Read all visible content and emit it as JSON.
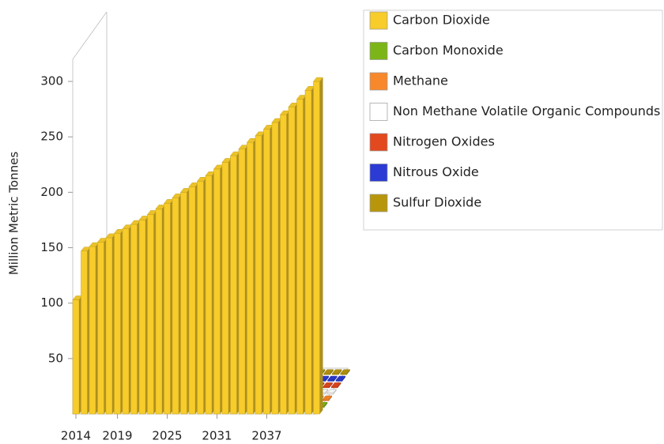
{
  "chart_data": {
    "type": "bar3d",
    "y_label": "Million Metric Tonnes",
    "categories": [
      "2014",
      null,
      null,
      null,
      null,
      "2019",
      null,
      null,
      null,
      null,
      null,
      "2025",
      null,
      null,
      null,
      null,
      null,
      "2031",
      null,
      null,
      null,
      null,
      null,
      "2037",
      null,
      null,
      null,
      null,
      null,
      null
    ],
    "series": [
      {
        "name": "Carbon Dioxide",
        "color": "#f7cc2b",
        "values": [
          103,
          147,
          151,
          155,
          159,
          163,
          167,
          171,
          175,
          180,
          185,
          190,
          195,
          200,
          205,
          210,
          215,
          221,
          227,
          233,
          239,
          245,
          251,
          257,
          263,
          270,
          277,
          284,
          292,
          300
        ]
      },
      {
        "name": "Carbon Monoxide",
        "color": "#7cb518",
        "values": [
          1,
          1,
          1,
          1,
          1,
          1,
          1,
          1,
          1,
          1,
          1,
          1,
          1,
          1,
          1,
          1,
          1,
          1,
          1,
          1,
          1,
          1,
          1,
          1,
          1,
          1,
          1,
          1,
          1,
          1
        ]
      },
      {
        "name": "Methane",
        "color": "#f7882c",
        "values": [
          1,
          1,
          1,
          1,
          1,
          1,
          1,
          1,
          1,
          1,
          1,
          1,
          1,
          1,
          1,
          1,
          1,
          1,
          1,
          1,
          1,
          1,
          1,
          1,
          1,
          1,
          1,
          1,
          1,
          1
        ]
      },
      {
        "name": "Non Methane Volatile Organic Compounds",
        "color": "#ffffff",
        "values": [
          1,
          1,
          1,
          1,
          1,
          1,
          1,
          1,
          1,
          1,
          1,
          1,
          1,
          1,
          1,
          1,
          1,
          1,
          1,
          1,
          1,
          1,
          1,
          1,
          1,
          1,
          1,
          1,
          1,
          1
        ]
      },
      {
        "name": "Nitrogen Oxides",
        "color": "#e2491f",
        "values": [
          1,
          1,
          1,
          1,
          1,
          1,
          1,
          1,
          1,
          1,
          1,
          1,
          1,
          1,
          1,
          1,
          1,
          1,
          1,
          1,
          1,
          1,
          1,
          1,
          1,
          1,
          1,
          1,
          1,
          1
        ]
      },
      {
        "name": "Nitrous Oxide",
        "color": "#2b3bd4",
        "values": [
          1,
          1,
          1,
          1,
          1,
          1,
          1,
          1,
          1,
          1,
          1,
          1,
          1,
          1,
          1,
          1,
          1,
          1,
          1,
          1,
          1,
          1,
          1,
          1,
          1,
          1,
          1,
          1,
          1,
          1
        ]
      },
      {
        "name": "Sulfur Dioxide",
        "color": "#b8960c",
        "values": [
          1,
          1,
          1,
          1,
          1,
          1,
          1,
          1,
          1,
          1,
          1,
          1,
          1,
          1,
          1,
          1,
          1,
          1,
          1,
          1,
          1,
          1,
          1,
          1,
          1,
          1,
          1,
          1,
          1,
          1
        ]
      }
    ],
    "ylim": [
      0,
      320
    ],
    "yticks": [
      50,
      100,
      150,
      200,
      250,
      300
    ]
  }
}
